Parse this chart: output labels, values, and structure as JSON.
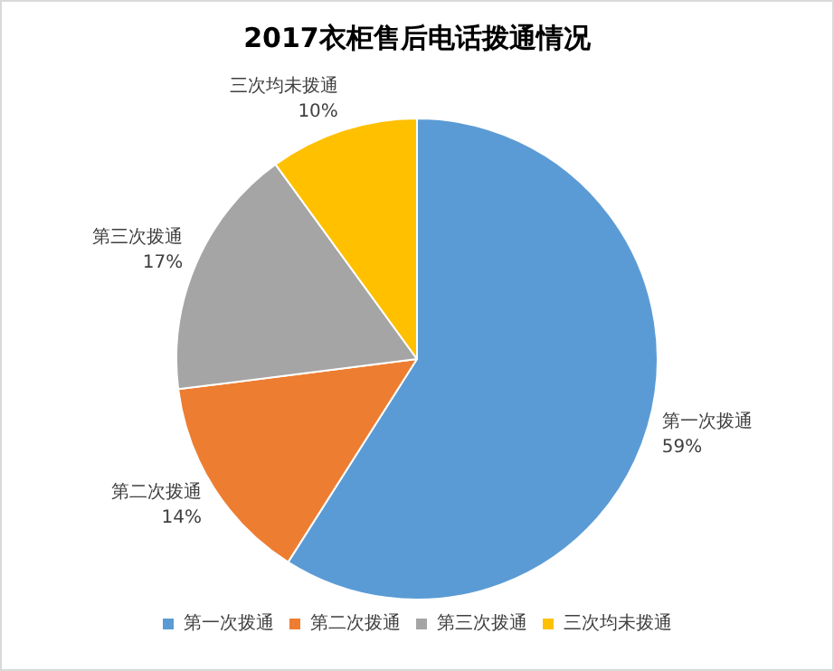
{
  "chart_data": {
    "type": "pie",
    "title": "2017衣柜售后电话拨通情况",
    "categories": [
      "第一次拨通",
      "第二次拨通",
      "第三次拨通",
      "三次均未拨通"
    ],
    "values": [
      59,
      14,
      17,
      10
    ],
    "value_labels": [
      "59%",
      "14%",
      "17%",
      "10%"
    ],
    "colors": [
      "#5b9bd5",
      "#ed7d31",
      "#a5a5a5",
      "#ffc000"
    ],
    "legend": "bottom"
  }
}
